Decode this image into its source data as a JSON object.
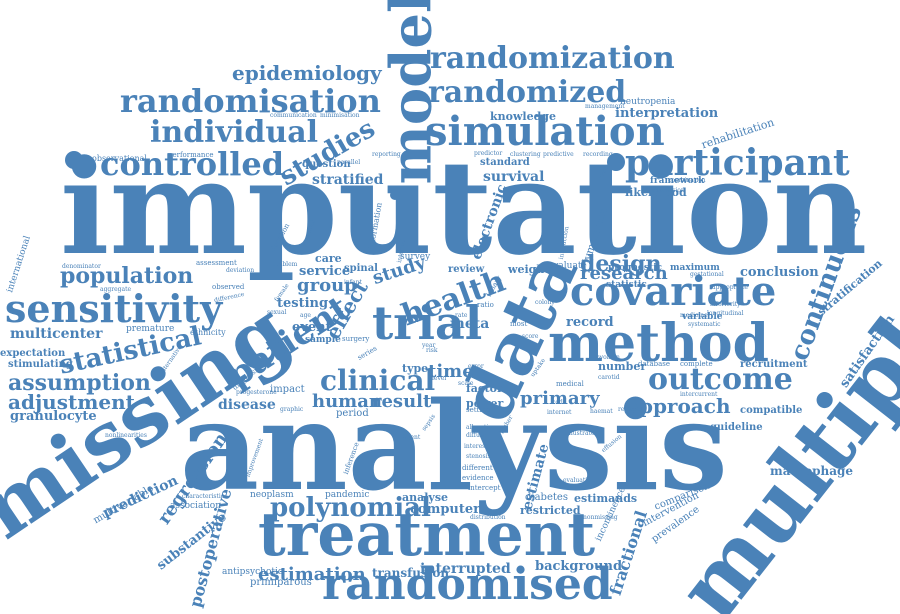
{
  "colors": {
    "word": "#4a82b8",
    "background": "#ffffff"
  },
  "words": [
    {
      "text": "imputation",
      "weight": 10
    },
    {
      "text": "analysis",
      "weight": 10
    },
    {
      "text": "missing",
      "weight": 9
    },
    {
      "text": "multiple",
      "weight": 9
    },
    {
      "text": "data",
      "weight": 9
    },
    {
      "text": "treatment",
      "weight": 8
    },
    {
      "text": "trial",
      "weight": 8
    },
    {
      "text": "method",
      "weight": 8
    },
    {
      "text": "model",
      "weight": 8
    },
    {
      "text": "randomised",
      "weight": 7
    },
    {
      "text": "covariate",
      "weight": 7
    },
    {
      "text": "simulation",
      "weight": 7
    },
    {
      "text": "sensitivity",
      "weight": 6
    },
    {
      "text": "participant",
      "weight": 6
    },
    {
      "text": "patient",
      "weight": 6
    },
    {
      "text": "randomisation",
      "weight": 6
    },
    {
      "text": "controlled",
      "weight": 6
    },
    {
      "text": "outcome",
      "weight": 6
    },
    {
      "text": "randomized",
      "weight": 6
    },
    {
      "text": "randomization",
      "weight": 6
    },
    {
      "text": "individual",
      "weight": 6
    },
    {
      "text": "health",
      "weight": 6
    },
    {
      "text": "continuous",
      "weight": 5
    },
    {
      "text": "polynomial",
      "weight": 5
    },
    {
      "text": "statistical",
      "weight": 5
    },
    {
      "text": "clinical",
      "weight": 5
    },
    {
      "text": "studies",
      "weight": 5
    },
    {
      "text": "population",
      "weight": 5
    },
    {
      "text": "assumption",
      "weight": 4
    },
    {
      "text": "adjustment",
      "weight": 4
    },
    {
      "text": "estimation",
      "weight": 4
    },
    {
      "text": "design",
      "weight": 4
    },
    {
      "text": "research",
      "weight": 4
    },
    {
      "text": "approach",
      "weight": 4
    },
    {
      "text": "regression",
      "weight": 4
    },
    {
      "text": "postoperative",
      "weight": 4
    },
    {
      "text": "fractional",
      "weight": 4
    },
    {
      "text": "epidemiology",
      "weight": 4
    },
    {
      "text": "study",
      "weight": 4
    },
    {
      "text": "human",
      "weight": 4
    },
    {
      "text": "result",
      "weight": 4
    },
    {
      "text": "effect",
      "weight": 4
    },
    {
      "text": "group",
      "weight": 4
    },
    {
      "text": "primary",
      "weight": 4
    },
    {
      "text": "time",
      "weight": 4
    },
    {
      "text": "interrupted",
      "weight": 3
    },
    {
      "text": "background",
      "weight": 3
    },
    {
      "text": "computer",
      "weight": 3
    },
    {
      "text": "estimate",
      "weight": 3
    },
    {
      "text": "electronic",
      "weight": 3
    },
    {
      "text": "stratified",
      "weight": 3
    },
    {
      "text": "survival",
      "weight": 3
    },
    {
      "text": "multicenter",
      "weight": 3
    },
    {
      "text": "granulocyte",
      "weight": 3
    },
    {
      "text": "prediction",
      "weight": 3
    },
    {
      "text": "substantive",
      "weight": 3
    },
    {
      "text": "disease",
      "weight": 3
    },
    {
      "text": "testing",
      "weight": 3
    },
    {
      "text": "event",
      "weight": 3
    },
    {
      "text": "service",
      "weight": 3
    },
    {
      "text": "record",
      "weight": 3
    },
    {
      "text": "meta",
      "weight": 3
    },
    {
      "text": "satisfaction",
      "weight": 3
    },
    {
      "text": "stratification",
      "weight": 3
    },
    {
      "text": "knowledge",
      "weight": 3
    },
    {
      "text": "interpretation",
      "weight": 3
    },
    {
      "text": "conclusion",
      "weight": 3
    },
    {
      "text": "macrophage",
      "weight": 3
    },
    {
      "text": "transfusion",
      "weight": 3
    },
    {
      "text": "multivariable",
      "weight": 2
    },
    {
      "text": "likelihood",
      "weight": 2
    },
    {
      "text": "rehabilitation",
      "weight": 2
    },
    {
      "text": "weight",
      "weight": 2
    },
    {
      "text": "power",
      "weight": 2
    },
    {
      "text": "care",
      "weight": 2
    },
    {
      "text": "expectation",
      "weight": 2
    },
    {
      "text": "stimulating",
      "weight": 2
    },
    {
      "text": "analyse",
      "weight": 2
    },
    {
      "text": "restricted",
      "weight": 2
    },
    {
      "text": "diabetes",
      "weight": 2
    },
    {
      "text": "estimands",
      "weight": 2
    },
    {
      "text": "compatible",
      "weight": 2
    },
    {
      "text": "guideline",
      "weight": 2
    },
    {
      "text": "number",
      "weight": 2
    },
    {
      "text": "factor",
      "weight": 2
    },
    {
      "text": "recruitment",
      "weight": 2
    },
    {
      "text": "neutropenia",
      "weight": 2
    },
    {
      "text": "framework",
      "weight": 2
    },
    {
      "text": "standard",
      "weight": 2
    },
    {
      "text": "question",
      "weight": 2
    },
    {
      "text": "sample",
      "weight": 2
    },
    {
      "text": "neoplasm",
      "weight": 2
    },
    {
      "text": "pandemic",
      "weight": 2
    },
    {
      "text": "impact",
      "weight": 2
    },
    {
      "text": "type",
      "weight": 2
    },
    {
      "text": "period",
      "weight": 2
    },
    {
      "text": "review",
      "weight": 2
    },
    {
      "text": "spinal",
      "weight": 2
    },
    {
      "text": "survey",
      "weight": 2
    },
    {
      "text": "evaluate",
      "weight": 2
    },
    {
      "text": "maximum",
      "weight": 2
    },
    {
      "text": "lymphoma",
      "weight": 2
    },
    {
      "text": "association",
      "weight": 2
    },
    {
      "text": "primiparous",
      "weight": 2
    },
    {
      "text": "antipsychotic",
      "weight": 2
    },
    {
      "text": "international",
      "weight": 2
    },
    {
      "text": "comparison",
      "weight": 2
    },
    {
      "text": "intervention",
      "weight": 2
    },
    {
      "text": "prevalence",
      "weight": 2
    },
    {
      "text": "incontinence",
      "weight": 2
    },
    {
      "text": "statistic",
      "weight": 2
    },
    {
      "text": "prognostic",
      "weight": 2
    },
    {
      "text": "variable",
      "weight": 2
    },
    {
      "text": "ethnicity",
      "weight": 2
    },
    {
      "text": "premature",
      "weight": 2
    },
    {
      "text": "observational",
      "weight": 1
    },
    {
      "text": "performance",
      "weight": 1
    },
    {
      "text": "communication",
      "weight": 1
    },
    {
      "text": "minimisation",
      "weight": 1
    },
    {
      "text": "management",
      "weight": 1
    },
    {
      "text": "clustering",
      "weight": 1
    },
    {
      "text": "predictive",
      "weight": 1
    },
    {
      "text": "recording",
      "weight": 1
    },
    {
      "text": "predictor",
      "weight": 1
    },
    {
      "text": "combination",
      "weight": 1
    },
    {
      "text": "expression",
      "weight": 1
    },
    {
      "text": "available",
      "weight": 1
    },
    {
      "text": "reporting",
      "weight": 1
    },
    {
      "text": "parallel",
      "weight": 1
    },
    {
      "text": "assessment",
      "weight": 1
    },
    {
      "text": "denominator",
      "weight": 1
    },
    {
      "text": "deviation",
      "weight": 1
    },
    {
      "text": "difference",
      "weight": 1
    },
    {
      "text": "observed",
      "weight": 1
    },
    {
      "text": "aggregate",
      "weight": 1
    },
    {
      "text": "interaction",
      "weight": 1
    },
    {
      "text": "information",
      "weight": 1
    },
    {
      "text": "education",
      "weight": 1
    },
    {
      "text": "problem",
      "weight": 1
    },
    {
      "text": "sexual",
      "weight": 1
    },
    {
      "text": "female",
      "weight": 1
    },
    {
      "text": "infant",
      "weight": 1
    },
    {
      "text": "binary",
      "weight": 1
    },
    {
      "text": "ratio",
      "weight": 1
    },
    {
      "text": "colony",
      "weight": 1
    },
    {
      "text": "rate",
      "weight": 1
    },
    {
      "text": "most",
      "weight": 1
    },
    {
      "text": "risk",
      "weight": 1
    },
    {
      "text": "year",
      "weight": 1
    },
    {
      "text": "scale",
      "weight": 1
    },
    {
      "text": "medical",
      "weight": 1
    },
    {
      "text": "internet",
      "weight": 1
    },
    {
      "text": "setting",
      "weight": 1
    },
    {
      "text": "diffuse",
      "weight": 1
    },
    {
      "text": "interest",
      "weight": 1
    },
    {
      "text": "evidence",
      "weight": 1
    },
    {
      "text": "intercept",
      "weight": 1
    },
    {
      "text": "different",
      "weight": 1
    },
    {
      "text": "stenosis",
      "weight": 1
    },
    {
      "text": "agent",
      "weight": 1
    },
    {
      "text": "sepsis",
      "weight": 1
    },
    {
      "text": "inference",
      "weight": 1
    },
    {
      "text": "graphic",
      "weight": 1
    },
    {
      "text": "surgery",
      "weight": 1
    },
    {
      "text": "series",
      "weight": 1
    },
    {
      "text": "score",
      "weight": 1
    },
    {
      "text": "level",
      "weight": 1
    },
    {
      "text": "woman",
      "weight": 1
    },
    {
      "text": "carotid",
      "weight": 1
    },
    {
      "text": "database",
      "weight": 1
    },
    {
      "text": "complete",
      "weight": 1
    },
    {
      "text": "relevant",
      "weight": 1
    },
    {
      "text": "haemat",
      "weight": 1
    },
    {
      "text": "medicine",
      "weight": 1
    },
    {
      "text": "systematic",
      "weight": 1
    },
    {
      "text": "appropriate",
      "weight": 1
    },
    {
      "text": "inferiority",
      "weight": 1
    },
    {
      "text": "longitudinal",
      "weight": 1
    },
    {
      "text": "intercurrent",
      "weight": 1
    },
    {
      "text": "gestational",
      "weight": 1
    },
    {
      "text": "alternative",
      "weight": 1
    },
    {
      "text": "diagnosis",
      "weight": 1
    },
    {
      "text": "characteristic",
      "weight": 1
    },
    {
      "text": "nonlinearities",
      "weight": 1
    },
    {
      "text": "improvement",
      "weight": 1
    },
    {
      "text": "allocation",
      "weight": 1
    },
    {
      "text": "evaluation",
      "weight": 1
    },
    {
      "text": "progesterone",
      "weight": 1
    },
    {
      "text": "uptake",
      "weight": 1
    },
    {
      "text": "based",
      "weight": 1
    },
    {
      "text": "error",
      "weight": 1
    },
    {
      "text": "higher",
      "weight": 1
    },
    {
      "text": "code",
      "weight": 1
    },
    {
      "text": "illustrate",
      "weight": 1
    },
    {
      "text": "effusion",
      "weight": 1
    },
    {
      "text": "age",
      "weight": 1
    },
    {
      "text": "distribution",
      "weight": 1
    },
    {
      "text": "internal",
      "weight": 1
    },
    {
      "text": "mental",
      "weight": 1
    },
    {
      "text": "nonmissing",
      "weight": 1
    }
  ]
}
